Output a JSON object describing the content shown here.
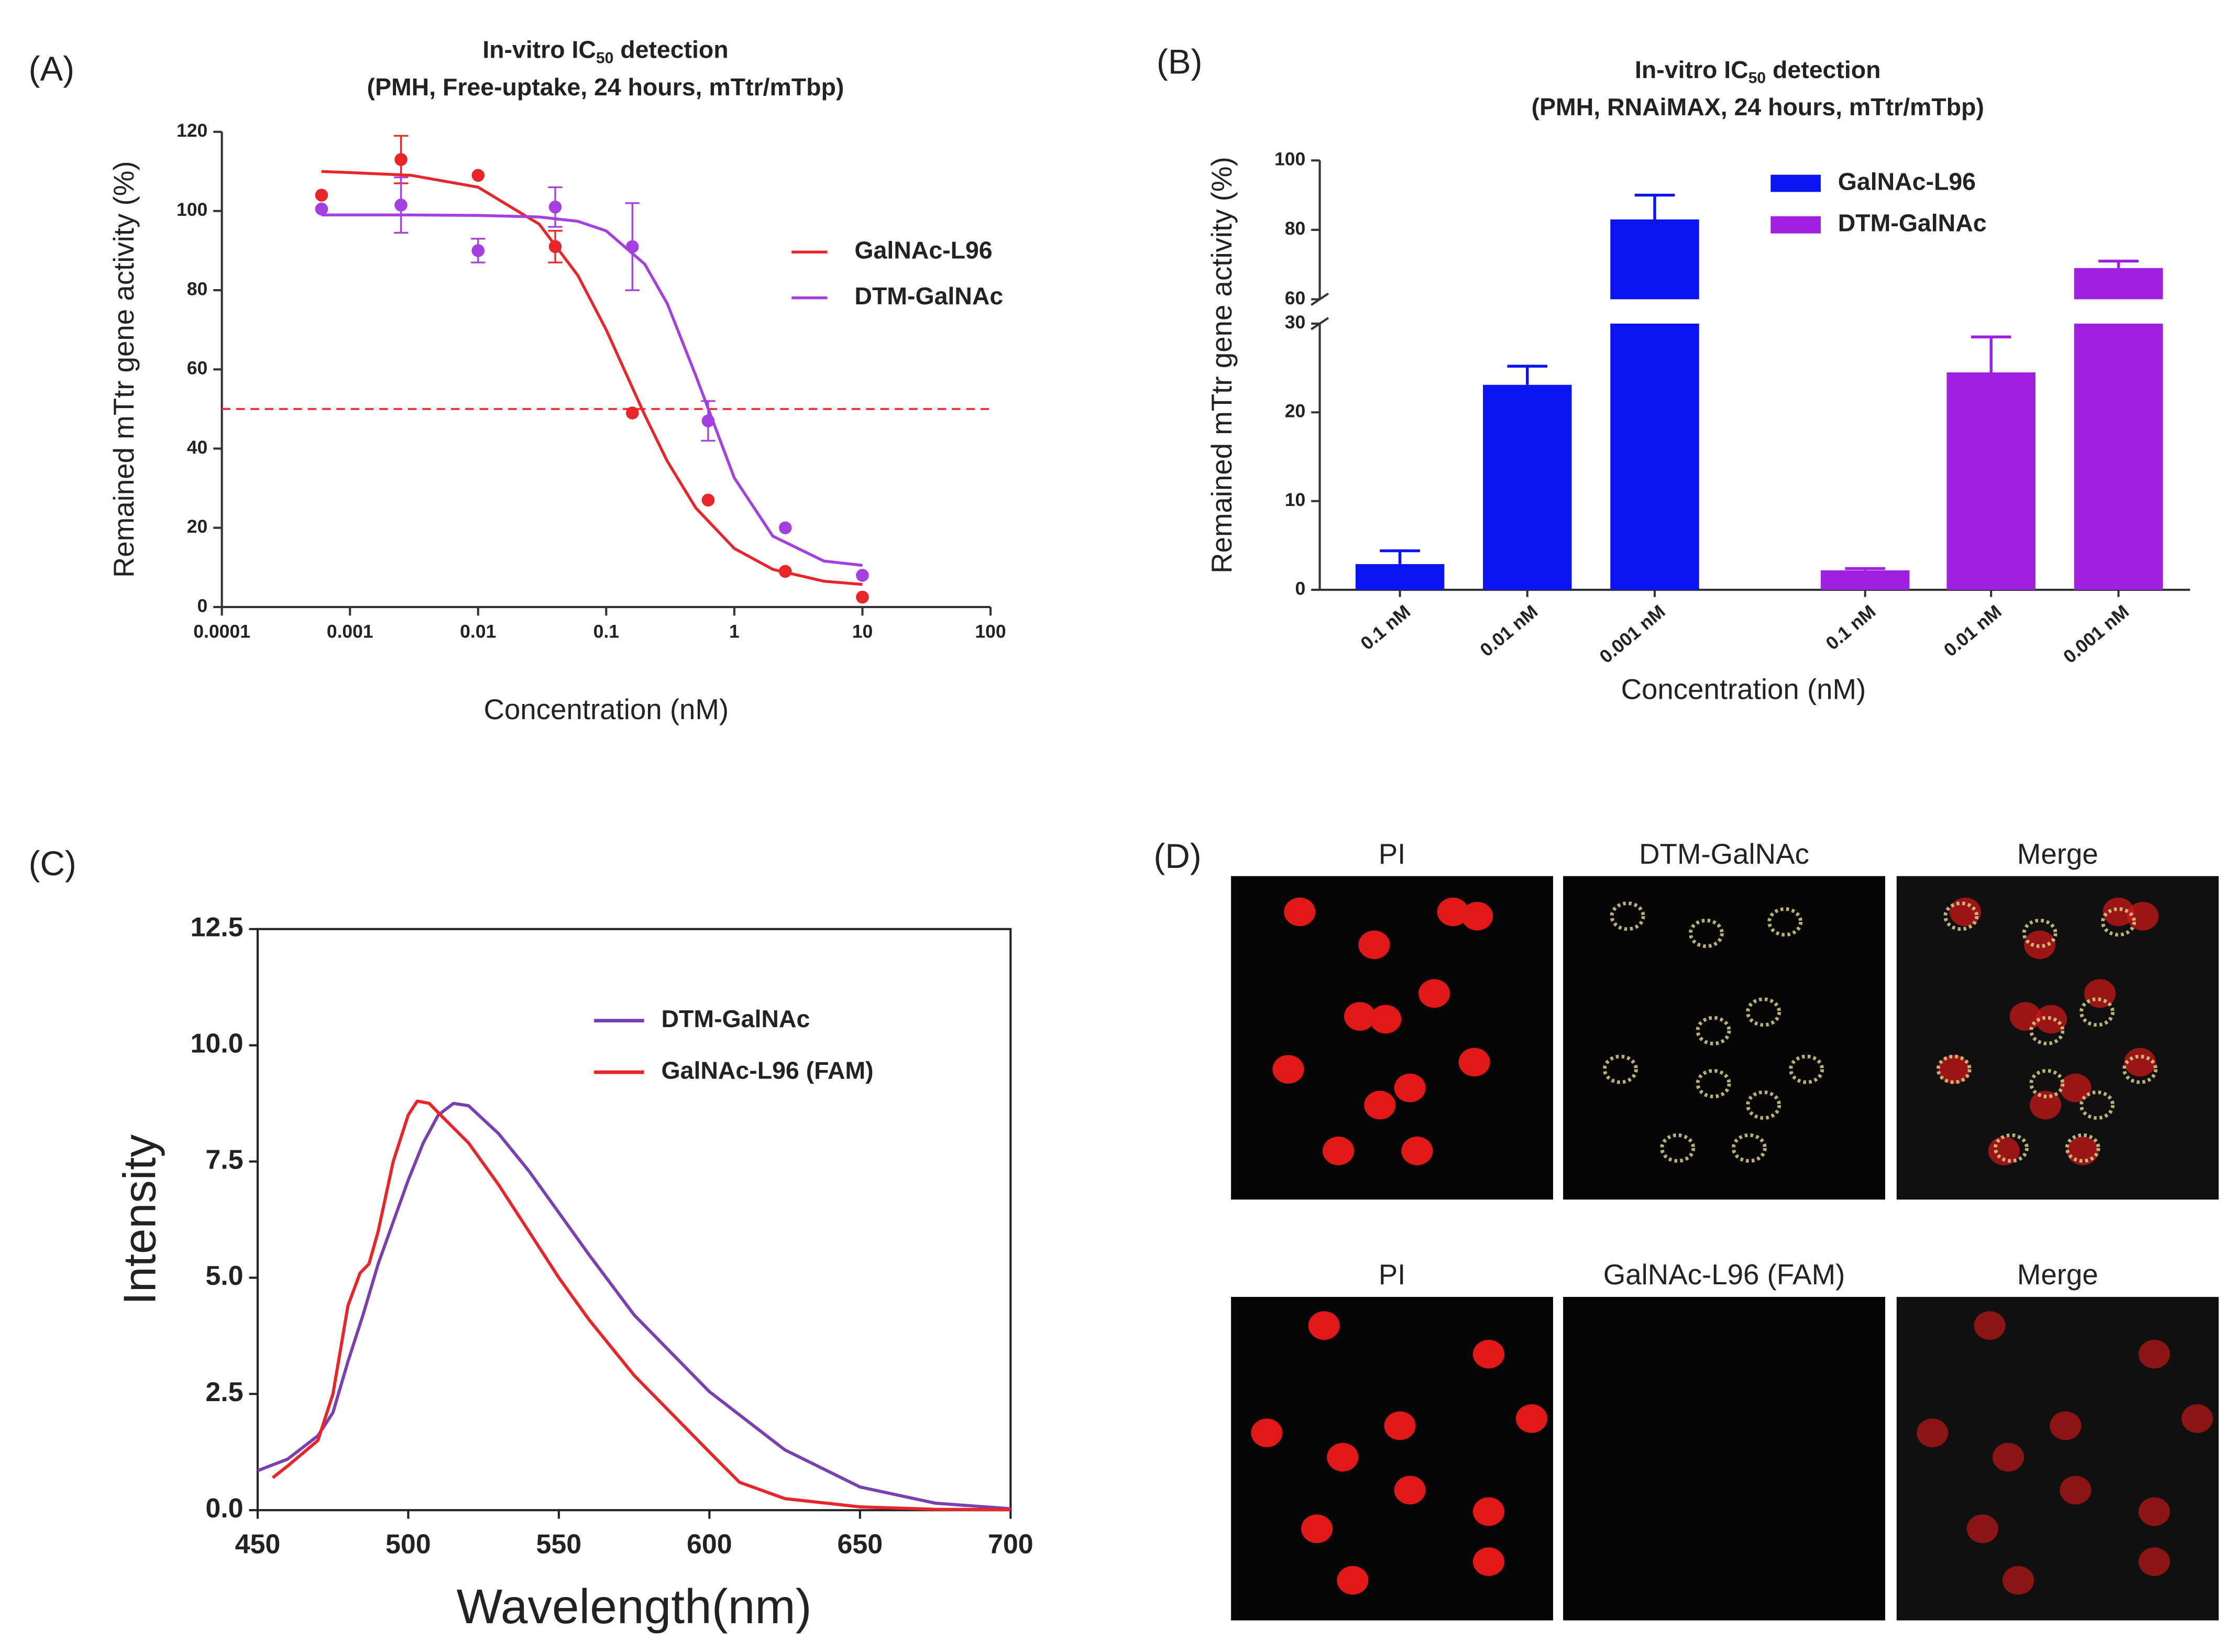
{
  "chart_data": [
    {
      "type": "scatter",
      "label": "(A)",
      "title": {
        "main": "In-vitro IC",
        "sub": "50",
        "rest": " detection"
      },
      "subtitle": "(PMH, Free-uptake, 24 hours, mTtr/mTbp)",
      "x_label": "Concentration (nM)",
      "y_label": "Remained mTtr gene activity (%)",
      "x": [
        0.0006,
        0.0025,
        0.01,
        0.04,
        0.16,
        0.625,
        2.5,
        10
      ],
      "xlog": true,
      "xlim": [
        0.0001,
        100
      ],
      "xticks": [
        0.0001,
        0.001,
        0.01,
        0.1,
        1,
        10,
        100
      ],
      "ylim": [
        0,
        120
      ],
      "yticks": [
        0,
        20,
        40,
        60,
        80,
        100,
        120
      ],
      "legend": "right",
      "reference_line": {
        "value": 50,
        "color": "#e8393a",
        "dashed": true
      },
      "curve_x": [
        0.0006,
        0.001,
        0.003,
        0.01,
        0.03,
        0.06,
        0.1,
        0.2,
        0.3,
        0.5,
        1,
        2,
        5,
        10
      ],
      "series": [
        {
          "name": "GalNAc-L96",
          "color": "#e8262a",
          "values": [
            104,
            113,
            109,
            91,
            49,
            27,
            9,
            2.5
          ],
          "errors": [
            null,
            6,
            null,
            4,
            null,
            null,
            null,
            null
          ],
          "fit": [
            110,
            109.7,
            109,
            106,
            96.7,
            83.8,
            70,
            48.5,
            36.8,
            25,
            14.8,
            9.5,
            6.5,
            5.7
          ]
        },
        {
          "name": "DTM-GalNAc",
          "color": "#a43fe0",
          "values": [
            100.5,
            101.5,
            90,
            101,
            91,
            47,
            20,
            8
          ],
          "errors": [
            null,
            7,
            3,
            5,
            11,
            5,
            null,
            null
          ],
          "fit": [
            99,
            99,
            99,
            98.9,
            98.5,
            97.4,
            95,
            86.6,
            76.6,
            58.4,
            32.6,
            17.9,
            11.6,
            10.5
          ]
        }
      ]
    },
    {
      "type": "bar",
      "label": "(B)",
      "title": {
        "main": "In-vitro IC",
        "sub": "50",
        "rest": " detection"
      },
      "subtitle": "(PMH, RNAiMAX, 24 hours, mTtr/mTbp)",
      "x_label": "Concentration (nM)",
      "y_label": "Remained mTtr gene activity (%)",
      "categories": [
        "0.1 nM",
        "0.01 nM",
        "0.001 nM",
        "0.1 nM",
        "0.01 nM",
        "0.001 nM"
      ],
      "ylim": [
        0,
        100
      ],
      "axis_break": [
        30,
        60
      ],
      "yticks": [
        0,
        10,
        20,
        30,
        60,
        80,
        100
      ],
      "legend": "top",
      "series": [
        {
          "name": "GalNAc-L96",
          "color": "#0b14f0",
          "values": [
            2.9,
            23.1,
            83,
            null,
            null,
            null
          ],
          "errors": [
            1.5,
            2.1,
            7,
            null,
            null,
            null
          ]
        },
        {
          "name": "DTM-GalNAc",
          "color": "#a020e0",
          "values": [
            null,
            null,
            null,
            2.2,
            24.5,
            69
          ],
          "errors": [
            null,
            null,
            null,
            0.2,
            4,
            2
          ]
        }
      ]
    },
    {
      "type": "line",
      "label": "(C)",
      "x_label": "Wavelength(nm)",
      "y_label": "Intensity",
      "xlim": [
        450,
        700
      ],
      "xticks": [
        450,
        500,
        550,
        600,
        650,
        700
      ],
      "ylim": [
        0,
        12.5
      ],
      "yticks": [
        {
          "value": 0,
          "label": "0.0"
        },
        2.5,
        {
          "value": 5,
          "label": "5.0"
        },
        7.5,
        {
          "value": 10,
          "label": "10.0"
        },
        12.5
      ],
      "legend": "upper right",
      "series": [
        {
          "name": "DTM-GalNAc",
          "color": "#7a3fb0",
          "x": [
            450,
            460,
            470,
            475,
            480,
            485,
            490,
            500,
            505,
            510,
            515,
            520,
            530,
            540,
            550,
            560,
            575,
            600,
            625,
            650,
            675,
            700
          ],
          "values": [
            0.85,
            1.1,
            1.6,
            2.1,
            3.2,
            4.2,
            5.3,
            7.1,
            7.9,
            8.5,
            8.75,
            8.7,
            8.1,
            7.3,
            6.4,
            5.5,
            4.2,
            2.55,
            1.3,
            0.5,
            0.15,
            0.03
          ]
        },
        {
          "name": "GalNAc-L96 (FAM)",
          "color": "#e8262a",
          "x": [
            455,
            460,
            470,
            475,
            480,
            484,
            487,
            490,
            495,
            500,
            503,
            507,
            510,
            520,
            530,
            540,
            550,
            560,
            575,
            600,
            610,
            625,
            650,
            675,
            700
          ],
          "values": [
            0.7,
            0.95,
            1.5,
            2.5,
            4.4,
            5.1,
            5.3,
            6.0,
            7.5,
            8.5,
            8.8,
            8.75,
            8.55,
            7.9,
            7.0,
            6.0,
            5.0,
            4.1,
            2.9,
            1.25,
            0.6,
            0.25,
            0.07,
            0.02,
            0.01
          ]
        }
      ]
    },
    {
      "type": "image-grid",
      "label": "(D)",
      "rows": [
        [
          "PI",
          "DTM-GalNAc",
          "Merge"
        ],
        [
          "PI",
          "GalNAc-L96 (FAM)",
          "Merge"
        ]
      ]
    }
  ]
}
